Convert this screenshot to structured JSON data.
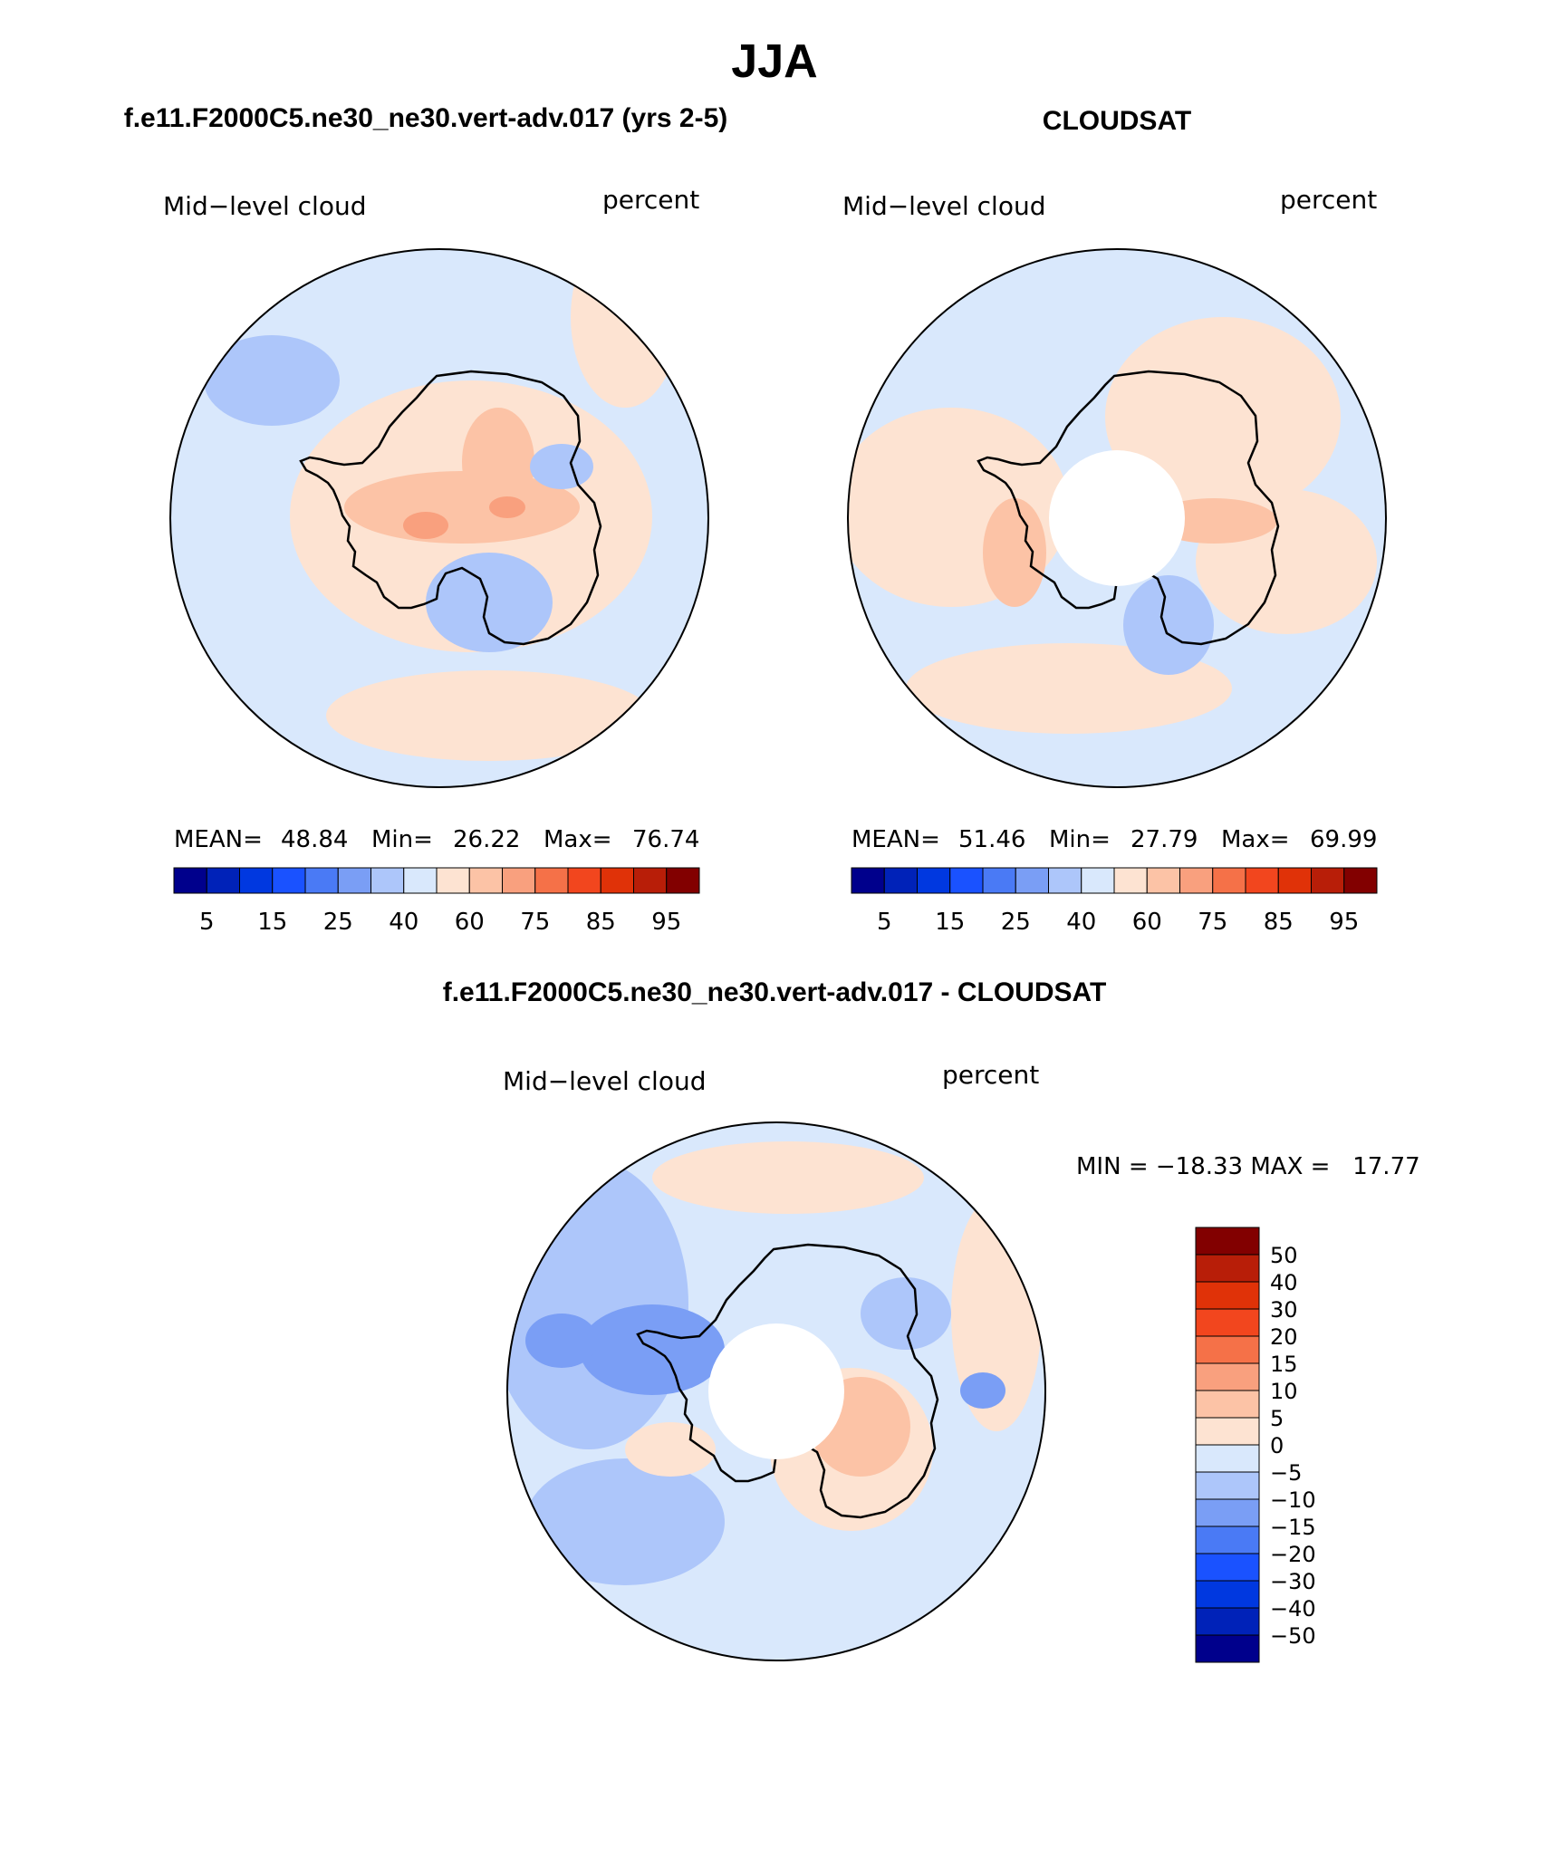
{
  "title": "JJA",
  "panels": [
    {
      "id": "model",
      "header": "f.e11.F2000C5.ne30_ne30.vert-adv.017 (yrs 2-5)",
      "variable": "Mid−level cloud",
      "units": "percent",
      "stats": {
        "mean_label": "MEAN=",
        "mean_value": "48.84",
        "min_label": "Min=",
        "min_value": "26.22",
        "max_label": "Max=",
        "max_value": "76.74"
      },
      "colorbar_ticks": [
        "5",
        "15",
        "25",
        "40",
        "60",
        "75",
        "85",
        "95"
      ],
      "pole_hole": false
    },
    {
      "id": "obs",
      "header": "CLOUDSAT",
      "variable": "Mid−level cloud",
      "units": "percent",
      "stats": {
        "mean_label": "MEAN=",
        "mean_value": "51.46",
        "min_label": "Min=",
        "min_value": "27.79",
        "max_label": "Max=",
        "max_value": "69.99"
      },
      "colorbar_ticks": [
        "5",
        "15",
        "25",
        "40",
        "60",
        "75",
        "85",
        "95"
      ],
      "pole_hole": true
    }
  ],
  "difference": {
    "header": "f.e11.F2000C5.ne30_ne30.vert-adv.017 - CLOUDSAT",
    "variable": "Mid−level cloud",
    "units": "percent",
    "stats_text": "MIN = −18.33 MAX =   17.77",
    "colorbar_ticks": [
      "50",
      "40",
      "30",
      "20",
      "15",
      "10",
      "5",
      "0",
      "−5",
      "−10",
      "−15",
      "−20",
      "−30",
      "−40",
      "−50"
    ],
    "pole_hole": true
  },
  "colors": {
    "field_palette": [
      "#00008c",
      "#0022b8",
      "#0038e0",
      "#1a52ff",
      "#4a7af5",
      "#7a9ef5",
      "#adc6fa",
      "#d9e8fc",
      "#fde3d2",
      "#fcc3a6",
      "#f9a07e",
      "#f57148",
      "#f2461e",
      "#e03208",
      "#b81e08",
      "#820000"
    ],
    "diff_palette": [
      "#820000",
      "#b81e08",
      "#e03208",
      "#f2461e",
      "#f57148",
      "#f9a07e",
      "#fcc3a6",
      "#fde3d2",
      "#d9e8fc",
      "#adc6fa",
      "#7a9ef5",
      "#4a7af5",
      "#1a52ff",
      "#0038e0",
      "#0022b8",
      "#00008c"
    ]
  }
}
